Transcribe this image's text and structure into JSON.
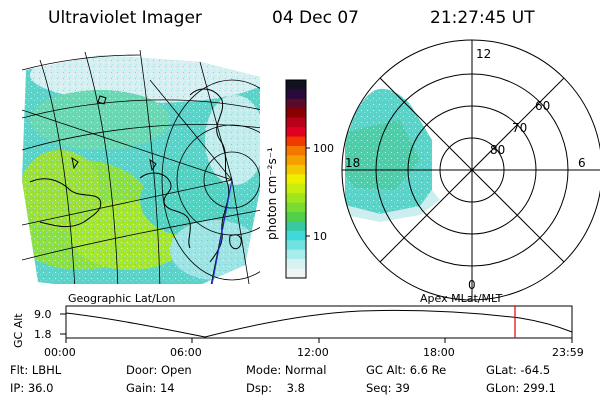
{
  "header": {
    "instrument": "Ultraviolet Imager",
    "date": "04 Dec 07",
    "time": "21:27:45 UT"
  },
  "colorbar": {
    "unit_label": "photon cm⁻²s⁻¹",
    "ticks": [
      "100",
      "10"
    ],
    "colors": [
      "#111122",
      "#2a0a3a",
      "#5a0a2a",
      "#8a0000",
      "#b8001a",
      "#e00020",
      "#f03a00",
      "#f47800",
      "#f6a000",
      "#f4c800",
      "#eeee00",
      "#c8ee10",
      "#a0e620",
      "#7adc30",
      "#54d048",
      "#38c9a0",
      "#40d8d8",
      "#70e2e2",
      "#a8ecec",
      "#d8f2f2",
      "#f0f4f4"
    ]
  },
  "left_panel": {
    "caption": "Geographic Lat/Lon"
  },
  "right_panel": {
    "caption": "Apex MLat/MLT",
    "mlt_labels": {
      "top": "12",
      "left": "18",
      "right": "6",
      "bottom": "0"
    },
    "lat_labels": [
      "60",
      "70",
      "80"
    ]
  },
  "orbit_plot": {
    "ylabel": "GC Alt",
    "yticks": [
      "9.0",
      "1.8"
    ],
    "xticks": [
      "00:00",
      "06:00",
      "12:00",
      "18:00",
      "23:59"
    ],
    "marker_color": "#e00000"
  },
  "status": {
    "row1": [
      {
        "label": "Flt:",
        "value": "LBHL"
      },
      {
        "label": "Door:",
        "value": "Open"
      },
      {
        "label": "Mode:",
        "value": "Normal"
      },
      {
        "label": "GC Alt:",
        "value": "6.6 Re"
      },
      {
        "label": "GLat:",
        "value": "-64.5"
      }
    ],
    "row2": [
      {
        "label": "IP:",
        "value": "36.0"
      },
      {
        "label": "Gain:",
        "value": "14"
      },
      {
        "label": "Dsp:",
        "value": "3.8"
      },
      {
        "label": "Seq:",
        "value": "39"
      },
      {
        "label": "GLon:",
        "value": "299.1"
      }
    ]
  }
}
